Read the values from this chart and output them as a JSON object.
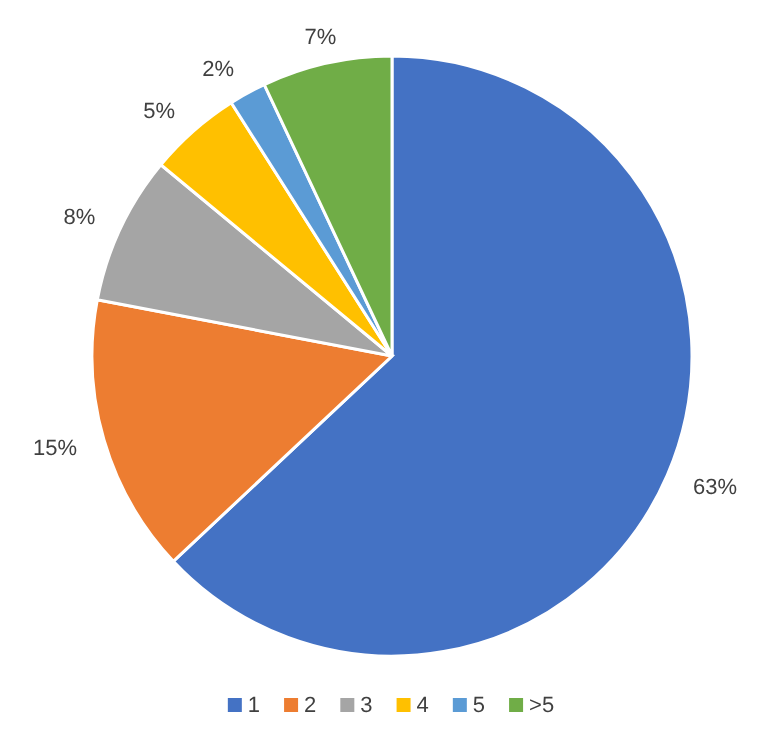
{
  "chart_data": {
    "type": "pie",
    "categories": [
      "1",
      "2",
      "3",
      "4",
      "5",
      ">5"
    ],
    "values": [
      63,
      15,
      8,
      5,
      2,
      7
    ],
    "colors": [
      "#4472c4",
      "#ed7d31",
      "#a5a5a5",
      "#ffc000",
      "#5b9bd5",
      "#70ad47"
    ],
    "value_labels": [
      "63%",
      "15%",
      "8%",
      "5%",
      "2%",
      "7%"
    ],
    "legend": "bottom"
  }
}
